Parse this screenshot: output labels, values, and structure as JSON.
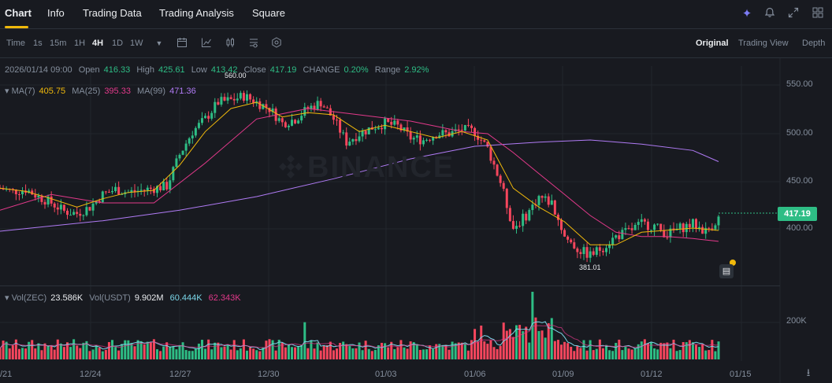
{
  "tabs": [
    "Chart",
    "Info",
    "Trading Data",
    "Trading Analysis",
    "Square"
  ],
  "active_tab": "Chart",
  "header_icons": [
    "sparkle-icon",
    "bell-icon",
    "expand-icon",
    "grid-icon"
  ],
  "timeframes": [
    "Time",
    "1s",
    "15m",
    "1H",
    "4H",
    "1D",
    "1W"
  ],
  "active_timeframe": "4H",
  "toolbar_icons": [
    "dropdown-icon",
    "calendar-icon",
    "indicator-icon",
    "candle-type-icon",
    "settings-icon",
    "hex-icon"
  ],
  "views": [
    "Original",
    "Trading View",
    "Depth"
  ],
  "active_view": "Original",
  "ohlc": {
    "date": "2026/01/14 09:00",
    "open_label": "Open",
    "open": "416.33",
    "high_label": "High",
    "high": "425.61",
    "low_label": "Low",
    "low": "413.42",
    "close_label": "Close",
    "close": "417.19",
    "change_label": "CHANGE",
    "change": "0.20%",
    "range_label": "Range",
    "range": "2.92%"
  },
  "ma": {
    "ma7_label": "MA(7)",
    "ma7": "405.75",
    "ma25_label": "MA(25)",
    "ma25": "395.33",
    "ma99_label": "MA(99)",
    "ma99": "471.36"
  },
  "vol": {
    "label1": "Vol(ZEC)",
    "value1": "23.586K",
    "label2": "Vol(USDT)",
    "value2": "9.902M",
    "ma1": "60.444K",
    "ma2": "62.343K"
  },
  "current_price": "417.19",
  "annotations": {
    "high": "560.00",
    "low": "381.01"
  },
  "y_labels": [
    "550.00",
    "500.00",
    "450.00",
    "400.00"
  ],
  "vol_y_label": "200K",
  "x_labels": [
    "/21",
    "12/24",
    "12/27",
    "12/30",
    "01/03",
    "01/06",
    "01/09",
    "01/12",
    "01/15"
  ],
  "watermark": "BINANCE",
  "colors": {
    "up": "#2ebd85",
    "down": "#f6465d",
    "ma7": "#f0b90b",
    "ma25": "#e2398a",
    "ma99": "#b07bf5",
    "accent": "#f0b90b"
  },
  "chart_data": {
    "type": "candlestick",
    "interval": "4H",
    "x_range": [
      "12/21",
      "01/15"
    ],
    "ylim": [
      360,
      570
    ],
    "close_points": [
      [
        0,
        446
      ],
      [
        4,
        443
      ],
      [
        8,
        445
      ],
      [
        12,
        438
      ],
      [
        16,
        432
      ],
      [
        20,
        424
      ],
      [
        24,
        422
      ],
      [
        28,
        428
      ],
      [
        32,
        440
      ],
      [
        36,
        445
      ],
      [
        40,
        442
      ],
      [
        44,
        444
      ],
      [
        48,
        446
      ],
      [
        52,
        448
      ],
      [
        56,
        478
      ],
      [
        60,
        500
      ],
      [
        64,
        512
      ],
      [
        68,
        528
      ],
      [
        72,
        530
      ],
      [
        76,
        534
      ],
      [
        80,
        528
      ],
      [
        84,
        522
      ],
      [
        88,
        508
      ],
      [
        92,
        512
      ],
      [
        96,
        522
      ],
      [
        100,
        528
      ],
      [
        104,
        512
      ],
      [
        108,
        490
      ],
      [
        112,
        498
      ],
      [
        116,
        504
      ],
      [
        120,
        508
      ],
      [
        124,
        505
      ],
      [
        128,
        494
      ],
      [
        132,
        492
      ],
      [
        136,
        498
      ],
      [
        140,
        498
      ],
      [
        144,
        502
      ],
      [
        148,
        500
      ],
      [
        152,
        484
      ],
      [
        156,
        452
      ],
      [
        160,
        408
      ],
      [
        164,
        420
      ],
      [
        168,
        438
      ],
      [
        172,
        432
      ],
      [
        176,
        400
      ],
      [
        180,
        388
      ],
      [
        184,
        382
      ],
      [
        188,
        390
      ],
      [
        192,
        400
      ],
      [
        196,
        405
      ],
      [
        200,
        412
      ],
      [
        204,
        410
      ],
      [
        208,
        402
      ],
      [
        212,
        408
      ],
      [
        216,
        412
      ],
      [
        220,
        405
      ],
      [
        224,
        417.19
      ]
    ],
    "ma7_points": [
      [
        0,
        446
      ],
      [
        8,
        443
      ],
      [
        16,
        436
      ],
      [
        24,
        428
      ],
      [
        32,
        436
      ],
      [
        40,
        442
      ],
      [
        48,
        444
      ],
      [
        56,
        468
      ],
      [
        64,
        500
      ],
      [
        72,
        522
      ],
      [
        80,
        528
      ],
      [
        88,
        514
      ],
      [
        96,
        518
      ],
      [
        104,
        516
      ],
      [
        112,
        500
      ],
      [
        120,
        506
      ],
      [
        128,
        500
      ],
      [
        136,
        494
      ],
      [
        144,
        500
      ],
      [
        152,
        492
      ],
      [
        160,
        446
      ],
      [
        168,
        428
      ],
      [
        176,
        414
      ],
      [
        184,
        392
      ],
      [
        192,
        392
      ],
      [
        200,
        404
      ],
      [
        208,
        406
      ],
      [
        216,
        408
      ],
      [
        224,
        405.75
      ]
    ],
    "ma25_points": [
      [
        0,
        425
      ],
      [
        16,
        440
      ],
      [
        32,
        432
      ],
      [
        48,
        432
      ],
      [
        64,
        470
      ],
      [
        80,
        512
      ],
      [
        96,
        522
      ],
      [
        112,
        516
      ],
      [
        128,
        510
      ],
      [
        144,
        500
      ],
      [
        152,
        498
      ],
      [
        160,
        480
      ],
      [
        168,
        460
      ],
      [
        176,
        440
      ],
      [
        184,
        420
      ],
      [
        192,
        404
      ],
      [
        200,
        400
      ],
      [
        208,
        400
      ],
      [
        216,
        398
      ],
      [
        224,
        395.33
      ]
    ],
    "ma99_points": [
      [
        0,
        405
      ],
      [
        32,
        415
      ],
      [
        56,
        425
      ],
      [
        80,
        438
      ],
      [
        104,
        455
      ],
      [
        128,
        474
      ],
      [
        148,
        486
      ],
      [
        168,
        490
      ],
      [
        184,
        492
      ],
      [
        200,
        488
      ],
      [
        216,
        482
      ],
      [
        224,
        471.36
      ]
    ],
    "annotations": {
      "high": "560.00",
      "low": "381.01"
    }
  }
}
